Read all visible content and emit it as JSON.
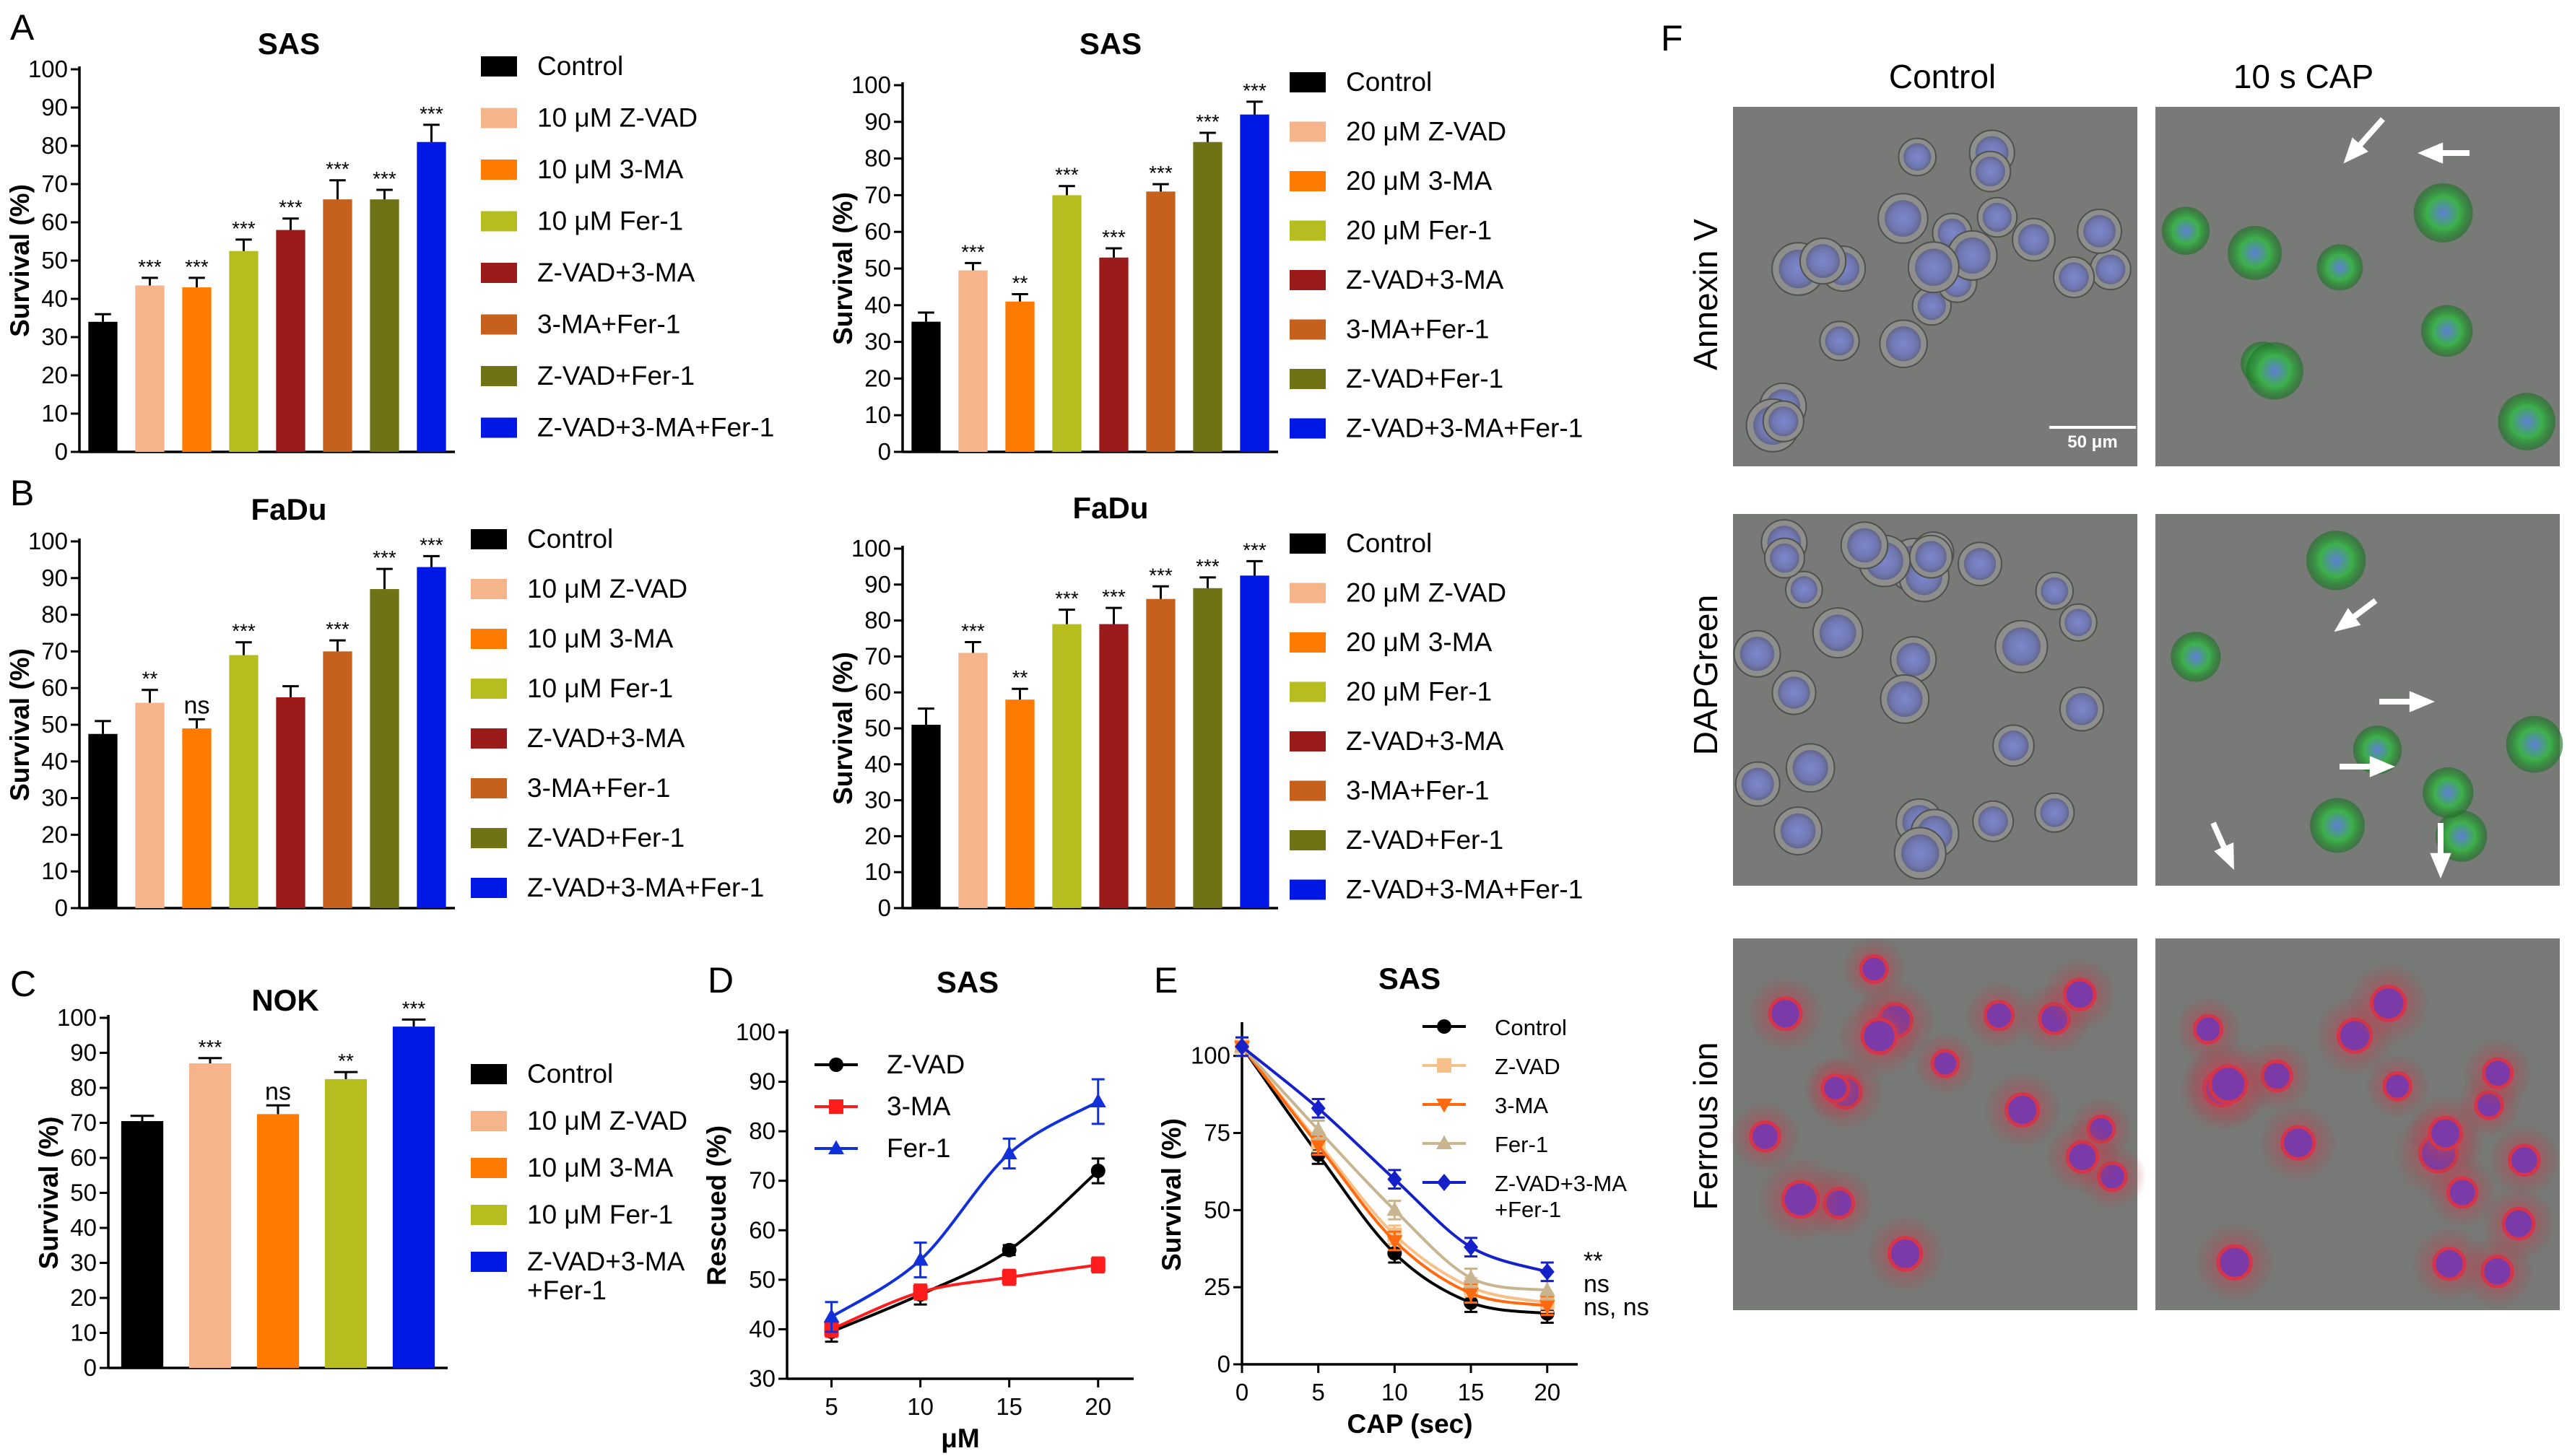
{
  "colors": {
    "Control": "#000000",
    "Z-VAD": "#f5b48a",
    "3-MA": "#ff7a00",
    "Fer-1": "#b5be1e",
    "Z-VAD+3-MA": "#9b1b1b",
    "3-MA+Fer-1": "#c5611c",
    "Z-VAD+Fer-1": "#6f7316",
    "Z-VAD+3-MA+Fer-1": "#0018e6",
    "curve_zvad": "#000000",
    "curve_3ma": "#ff1c1c",
    "curve_fer1": "#1230d8",
    "e_control": "#000000",
    "e_zvad": "#f8c089",
    "e_3ma": "#ff6a10",
    "e_fer1": "#c8b48e",
    "e_triple": "#1420c8"
  },
  "panel_letters": {
    "a": "A",
    "b": "B",
    "c": "C",
    "d": "D",
    "e": "E",
    "f": "F"
  },
  "chart_data": [
    {
      "id": "A1",
      "type": "bar",
      "title": "SAS",
      "ylabel": "Survival (%)",
      "ylim": [
        0,
        100
      ],
      "yticks": [
        0,
        10,
        20,
        30,
        40,
        50,
        60,
        70,
        80,
        90,
        100
      ],
      "categories": [
        "Control",
        "10 μM Z-VAD",
        "10 μM 3-MA",
        "10 μM Fer-1",
        "Z-VAD+3-MA",
        "3-MA+Fer-1",
        "Z-VAD+Fer-1",
        "Z-VAD+3-MA+Fer-1"
      ],
      "values": [
        34,
        43.5,
        43,
        52.5,
        58,
        66,
        66,
        81
      ],
      "errors": [
        2,
        2,
        2.5,
        3,
        3,
        5,
        2.5,
        4.5
      ],
      "significance": [
        "",
        "***",
        "***",
        "***",
        "***",
        "***",
        "***",
        "***"
      ]
    },
    {
      "id": "A2",
      "type": "bar",
      "title": "SAS",
      "ylabel": "Survival (%)",
      "ylim": [
        0,
        100
      ],
      "yticks": [
        0,
        10,
        20,
        30,
        40,
        50,
        60,
        70,
        80,
        90,
        100
      ],
      "categories": [
        "Control",
        "20 μM Z-VAD",
        "20 μM 3-MA",
        "20 μM Fer-1",
        "Z-VAD+3-MA",
        "3-MA+Fer-1",
        "Z-VAD+Fer-1",
        "Z-VAD+3-MA+Fer-1"
      ],
      "values": [
        35.5,
        49.5,
        41,
        70,
        53,
        71,
        84.5,
        92
      ],
      "errors": [
        2.5,
        2,
        2,
        2.5,
        2.5,
        2,
        2.5,
        3.5
      ],
      "significance": [
        "",
        "***",
        "**",
        "***",
        "***",
        "***",
        "***",
        "***"
      ]
    },
    {
      "id": "B1",
      "type": "bar",
      "title": "FaDu",
      "ylabel": "Survival (%)",
      "ylim": [
        0,
        100
      ],
      "yticks": [
        0,
        10,
        20,
        30,
        40,
        50,
        60,
        70,
        80,
        90,
        100
      ],
      "categories": [
        "Control",
        "10 μM Z-VAD",
        "10 μM 3-MA",
        "10 μM Fer-1",
        "Z-VAD+3-MA",
        "3-MA+Fer-1",
        "Z-VAD+Fer-1",
        "Z-VAD+3-MA+Fer-1"
      ],
      "values": [
        47.5,
        56,
        49,
        69,
        57.5,
        70,
        87,
        93
      ],
      "errors": [
        3.5,
        3.5,
        2.5,
        3.5,
        3,
        3,
        5.5,
        3
      ],
      "significance": [
        "",
        "**",
        "ns",
        "***",
        "",
        "***",
        "***",
        "***"
      ]
    },
    {
      "id": "B2",
      "type": "bar",
      "title": "FaDu",
      "ylabel": "Survival (%)",
      "ylim": [
        0,
        100
      ],
      "yticks": [
        0,
        10,
        20,
        30,
        40,
        50,
        60,
        70,
        80,
        90,
        100
      ],
      "categories": [
        "Control",
        "20 μM Z-VAD",
        "20 μM 3-MA",
        "20 μM Fer-1",
        "Z-VAD+3-MA",
        "3-MA+Fer-1",
        "Z-VAD+Fer-1",
        "Z-VAD+3-MA+Fer-1"
      ],
      "values": [
        51,
        71,
        58,
        79,
        79,
        86,
        89,
        92.5
      ],
      "errors": [
        4.5,
        3,
        3,
        4,
        4.5,
        3.5,
        3,
        4
      ],
      "significance": [
        "",
        "***",
        "**",
        "***",
        "***",
        "***",
        "***",
        "***"
      ]
    },
    {
      "id": "C",
      "type": "bar",
      "title": "NOK",
      "ylabel": "Survival (%)",
      "ylim": [
        0,
        100
      ],
      "yticks": [
        0,
        10,
        20,
        30,
        40,
        50,
        60,
        70,
        80,
        90,
        100
      ],
      "categories": [
        "Control",
        "10 μM Z-VAD",
        "10 μM 3-MA",
        "10 μM Fer-1",
        "Z-VAD+3-MA\n+Fer-1"
      ],
      "values": [
        70.5,
        87,
        72.5,
        82.5,
        97.5
      ],
      "errors": [
        1.5,
        1.5,
        2.5,
        2,
        2
      ],
      "significance": [
        "",
        "***",
        "ns",
        "**",
        "***"
      ]
    },
    {
      "id": "D",
      "type": "line",
      "title": "SAS",
      "xlabel": "μM",
      "ylabel": "Rescued (%)",
      "xlim": [
        2.5,
        22
      ],
      "ylim": [
        30,
        100
      ],
      "xticks": [
        5,
        10,
        15,
        20
      ],
      "yticks": [
        30,
        40,
        50,
        60,
        70,
        80,
        90,
        100
      ],
      "series": [
        {
          "name": "Z-VAD",
          "x": [
            5,
            10,
            15,
            20
          ],
          "y": [
            39.5,
            47,
            56,
            72
          ],
          "err": [
            2,
            2,
            1,
            2.5
          ],
          "marker": "circle"
        },
        {
          "name": "3-MA",
          "x": [
            5,
            10,
            15,
            20
          ],
          "y": [
            40,
            47.5,
            50.5,
            53
          ],
          "err": [
            1.5,
            1.5,
            1.5,
            1.5
          ],
          "marker": "square"
        },
        {
          "name": "Fer-1",
          "x": [
            5,
            10,
            15,
            20
          ],
          "y": [
            42.5,
            54,
            75.5,
            86
          ],
          "err": [
            3,
            3.5,
            3,
            4.5
          ],
          "marker": "triangle"
        }
      ]
    },
    {
      "id": "E",
      "type": "line",
      "title": "SAS",
      "xlabel": "CAP (sec)",
      "ylabel": "Survival (%)",
      "xlim": [
        0,
        22
      ],
      "ylim": [
        0,
        110
      ],
      "xticks": [
        0,
        5,
        10,
        15,
        20
      ],
      "yticks": [
        0,
        25,
        50,
        75,
        100
      ],
      "series": [
        {
          "name": "Control",
          "x": [
            0,
            5,
            10,
            15,
            20
          ],
          "y": [
            103,
            68,
            36,
            20,
            16.5
          ],
          "err": [
            3,
            3,
            3,
            3,
            3
          ],
          "marker": "circle"
        },
        {
          "name": "Z-VAD",
          "x": [
            0,
            5,
            10,
            15,
            20
          ],
          "y": [
            103,
            72,
            42,
            25,
            20
          ],
          "err": [
            3,
            3,
            3,
            3,
            3
          ],
          "marker": "square"
        },
        {
          "name": "3-MA",
          "x": [
            0,
            5,
            10,
            15,
            20
          ],
          "y": [
            103,
            71,
            40,
            23,
            19
          ],
          "err": [
            3,
            3,
            3,
            3,
            3
          ],
          "marker": "triangle-down"
        },
        {
          "name": "Fer-1",
          "x": [
            0,
            5,
            10,
            15,
            20
          ],
          "y": [
            103,
            76,
            50,
            28,
            24
          ],
          "err": [
            3,
            3,
            3,
            3,
            3
          ],
          "marker": "triangle"
        },
        {
          "name": "Z-VAD+3-MA\n+Fer-1",
          "x": [
            0,
            5,
            10,
            15,
            20
          ],
          "y": [
            103,
            83,
            60,
            38,
            30
          ],
          "err": [
            3,
            3,
            3,
            3,
            3
          ],
          "marker": "diamond"
        }
      ],
      "significance": [
        "**",
        "ns",
        "ns, ns"
      ]
    }
  ],
  "micro": {
    "col_titles": [
      "Control",
      "10 s CAP"
    ],
    "row_labels": [
      "Annexin V",
      "DAPGreen",
      "Ferrous ion"
    ],
    "scale_bar": "50 μm"
  }
}
